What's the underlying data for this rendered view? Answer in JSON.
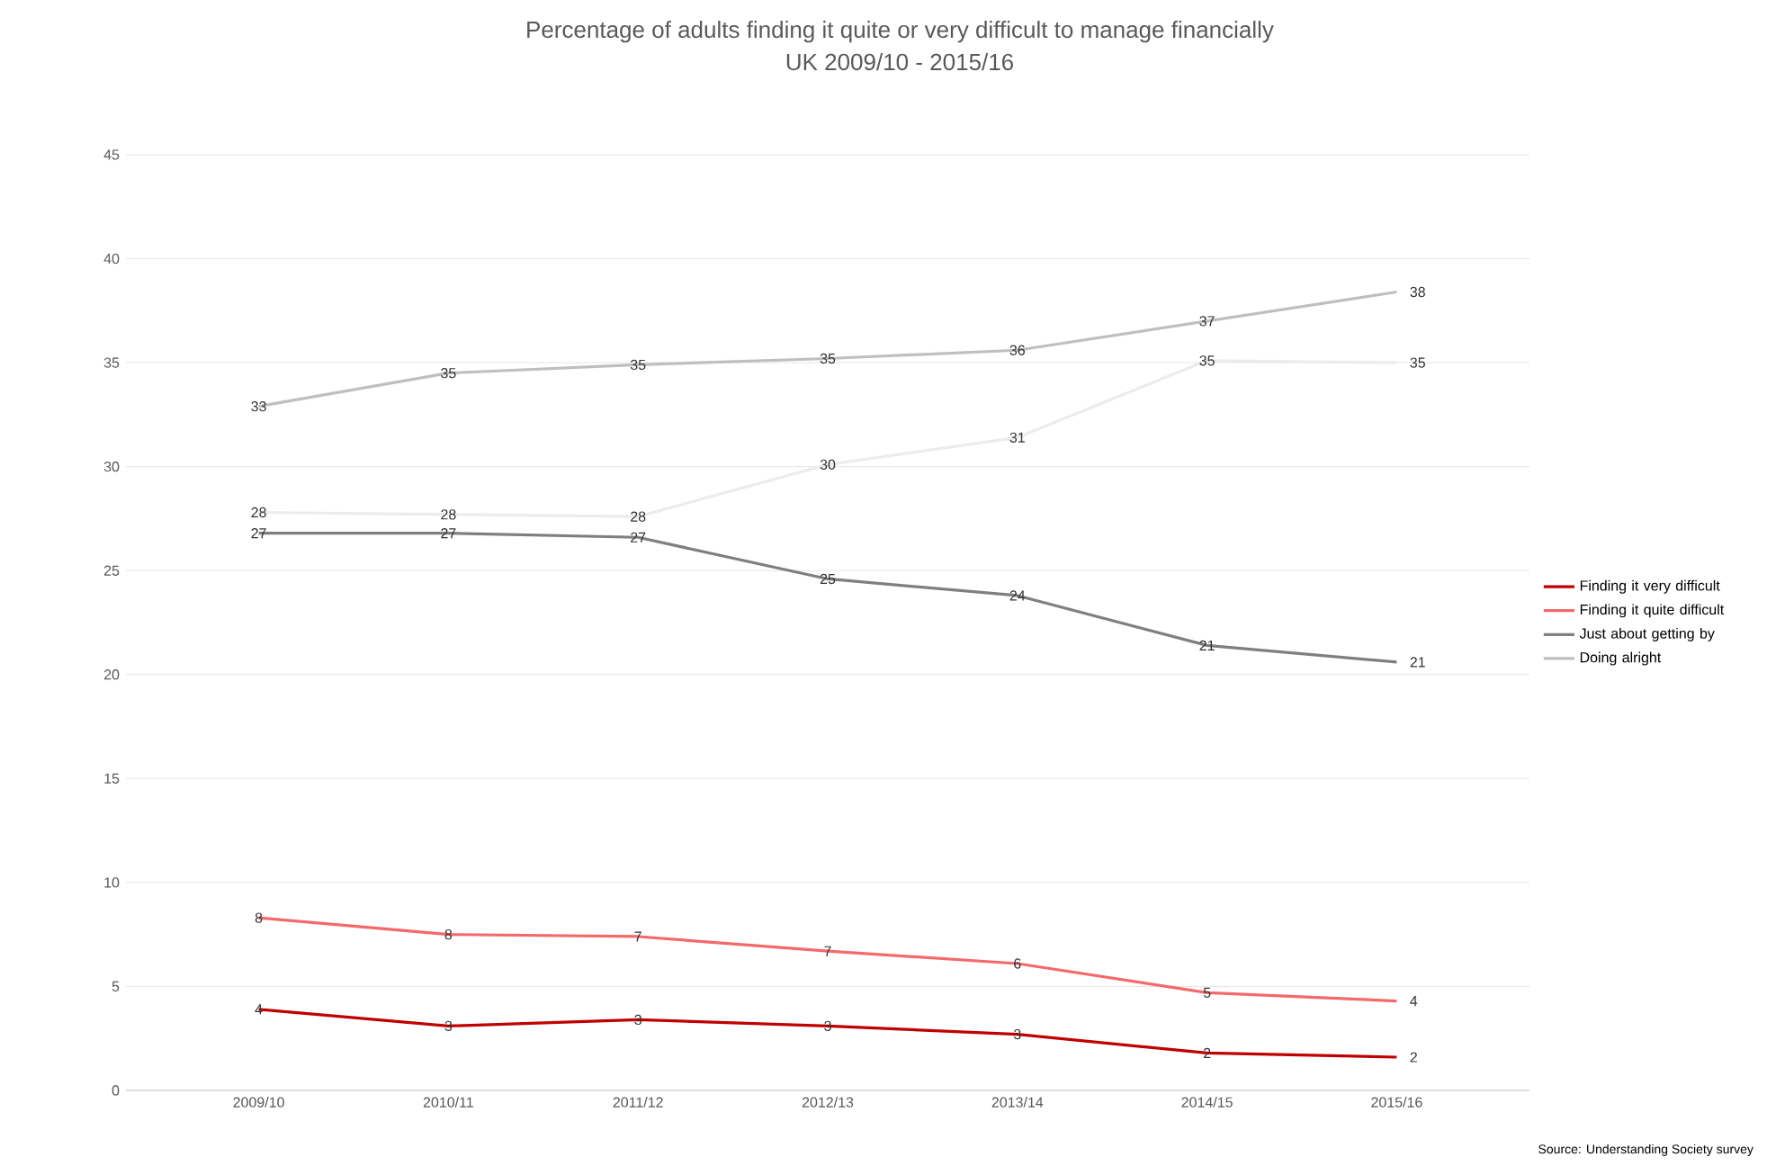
{
  "chart_data": {
    "type": "line",
    "title": "Percentage of adults finding it quite or very difficult to manage financially",
    "subtitle": "UK 2009/10 - 2015/16",
    "categories": [
      "2009/10",
      "2010/11",
      "2011/12",
      "2012/13",
      "2013/14",
      "2014/15",
      "2015/16"
    ],
    "series": [
      {
        "name": "Finding it very difficult",
        "color": "#c00000",
        "values": [
          3.9,
          3.1,
          3.4,
          3.1,
          2.7,
          1.8,
          1.6
        ],
        "value_labels": [
          "4",
          "3",
          "3",
          "3",
          "3",
          "2",
          "2"
        ]
      },
      {
        "name": "Finding it quite difficult",
        "color": "#f4696b",
        "values": [
          8.3,
          7.5,
          7.4,
          6.7,
          6.1,
          4.7,
          4.3
        ],
        "value_labels": [
          "8",
          "8",
          "7",
          "7",
          "6",
          "5",
          "4"
        ]
      },
      {
        "name": "Just about getting by",
        "color": "#7f7f7f",
        "values": [
          26.8,
          26.8,
          26.6,
          24.6,
          23.8,
          21.4,
          20.6
        ],
        "value_labels": [
          "27",
          "27",
          "27",
          "25",
          "24",
          "21",
          "21"
        ]
      },
      {
        "name": "Doing alright",
        "color": "#bfbfbf",
        "values": [
          32.9,
          34.5,
          34.9,
          35.2,
          35.6,
          37.0,
          38.4
        ],
        "value_labels": [
          "33",
          "35",
          "35",
          "35",
          "36",
          "37",
          "38"
        ]
      },
      {
        "color": "#ececec",
        "values": [
          27.8,
          27.7,
          27.6,
          30.1,
          31.4,
          35.1,
          35.0
        ],
        "value_labels": [
          "28",
          "28",
          "28",
          "30",
          "31",
          "35",
          "35"
        ]
      }
    ],
    "ylim": [
      0,
      45
    ],
    "yticks": [
      0,
      5,
      10,
      15,
      20,
      25,
      30,
      35,
      40,
      45
    ],
    "grid": "y",
    "legend": "right",
    "marker": "none",
    "line_style": "solid",
    "annotations": [
      "Source: Understanding  Society survey"
    ]
  }
}
